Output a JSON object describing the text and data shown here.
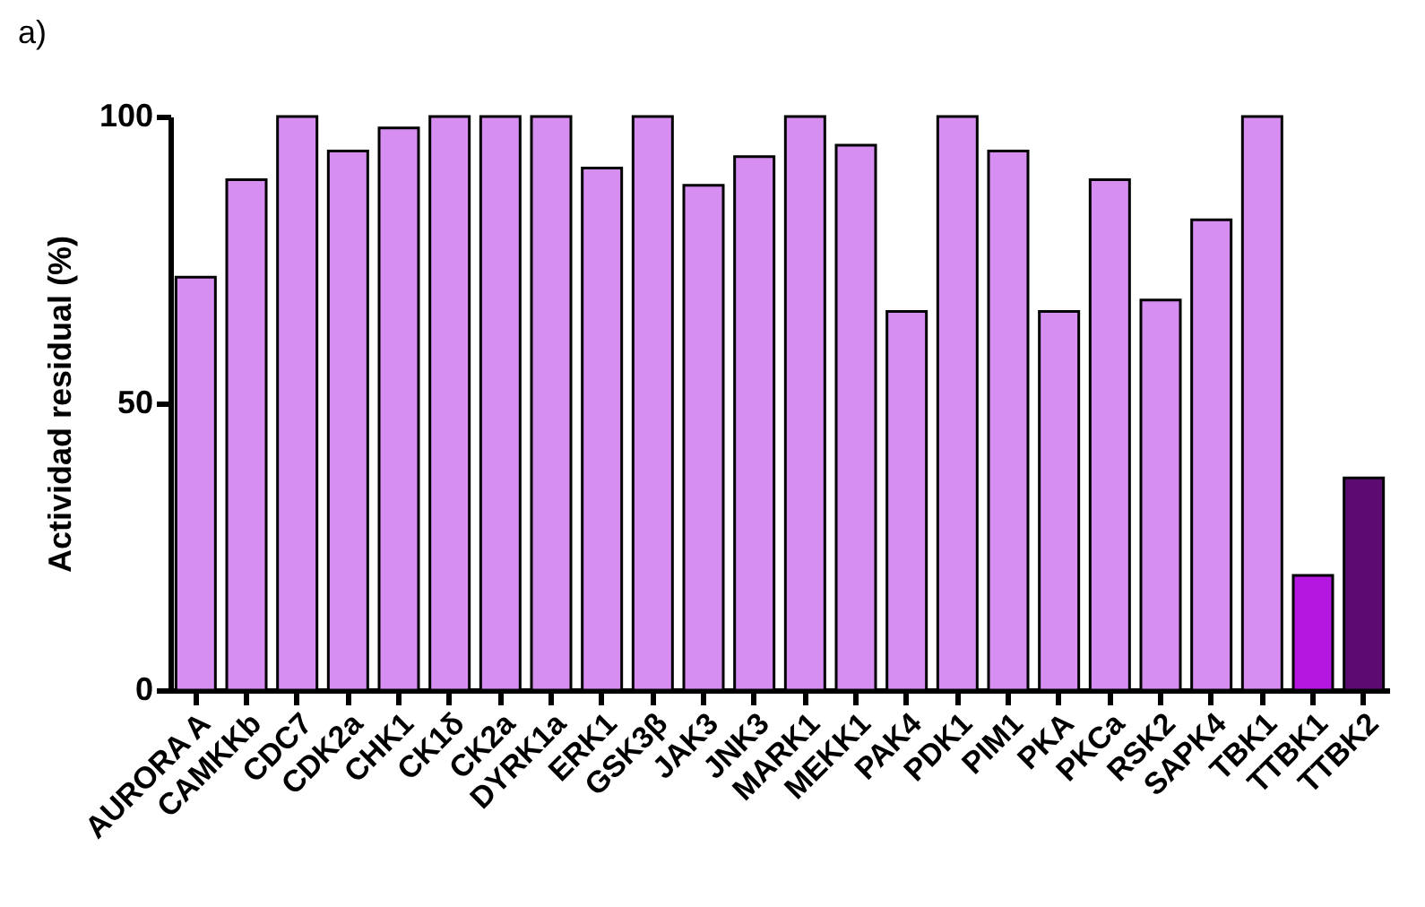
{
  "chart_data": {
    "type": "bar",
    "ylabel": "Actividad residual (%)",
    "annotations": [
      "a)"
    ],
    "categories": [
      "AURORA A",
      "CAMKKb",
      "CDC7",
      "CDK2a",
      "CHK1",
      "CK1δ",
      "CK2a",
      "DYRK1a",
      "ERK1",
      "GSK3β",
      "JAK3",
      "JNK3",
      "MARK1",
      "MEKK1",
      "PAK4",
      "PDK1",
      "PIM1",
      "PKA",
      "PKCa",
      "RSK2",
      "SAPK4",
      "TBK1",
      "TTBK1",
      "TTBK2"
    ],
    "values": [
      72,
      89,
      100,
      94,
      98,
      100,
      100,
      100,
      91,
      100,
      88,
      93,
      100,
      95,
      66,
      100,
      94,
      66,
      89,
      68,
      82,
      100,
      20,
      37
    ],
    "colors": [
      "#d68ef0",
      "#d68ef0",
      "#d68ef0",
      "#d68ef0",
      "#d68ef0",
      "#d68ef0",
      "#d68ef0",
      "#d68ef0",
      "#d68ef0",
      "#d68ef0",
      "#d68ef0",
      "#d68ef0",
      "#d68ef0",
      "#d68ef0",
      "#d68ef0",
      "#d68ef0",
      "#d68ef0",
      "#d68ef0",
      "#d68ef0",
      "#d68ef0",
      "#d68ef0",
      "#d68ef0",
      "#b418e0",
      "#5c0c70"
    ],
    "ylim": [
      0,
      100
    ],
    "yticks": [
      0,
      50,
      100
    ],
    "grid": false
  }
}
